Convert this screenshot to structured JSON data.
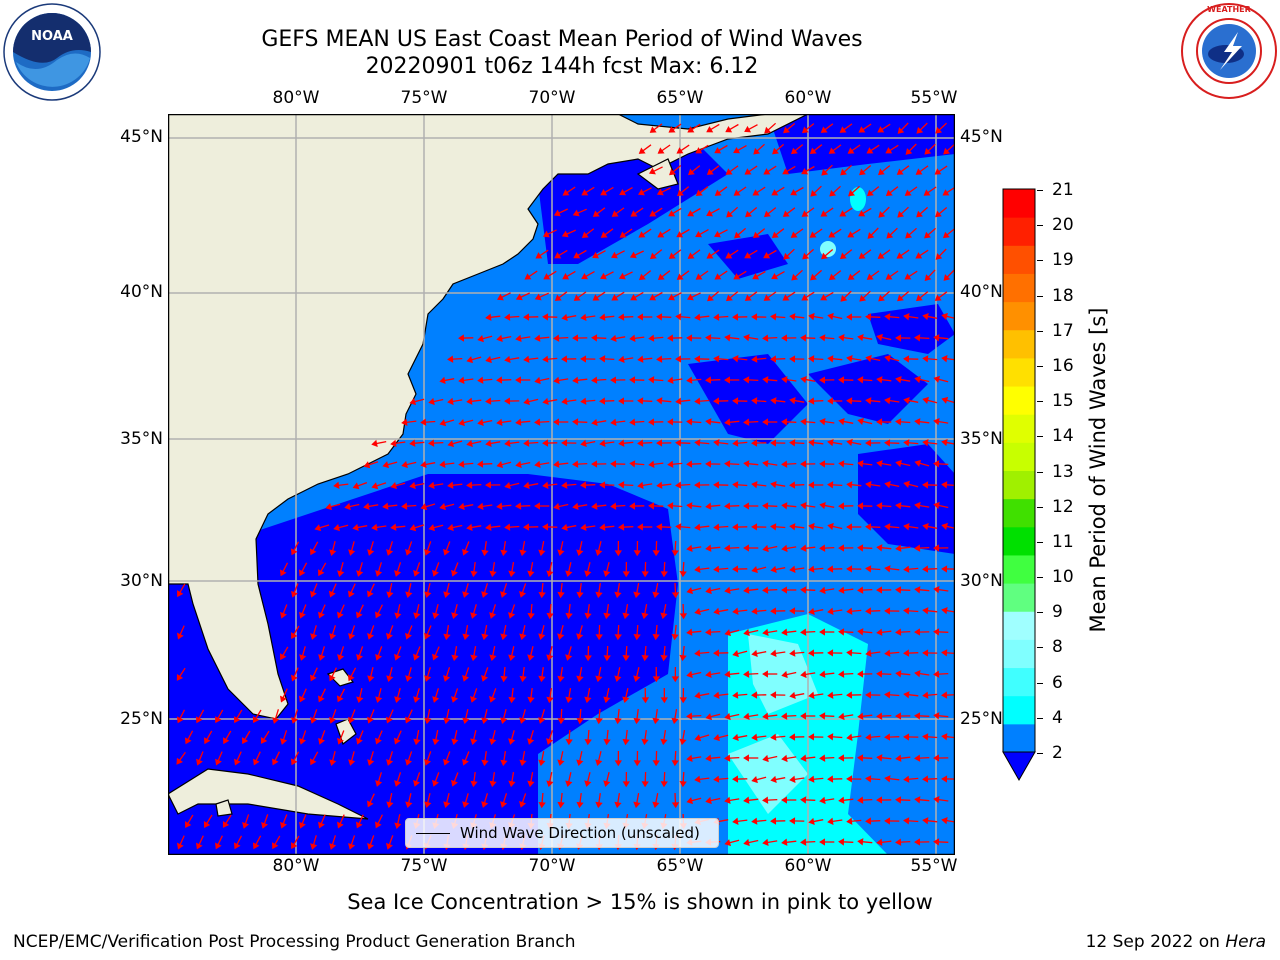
{
  "header": {
    "title_line1": "GEFS MEAN US East Coast Mean Period of Wind Waves",
    "title_line2": "20220901 t06z 144h fcst   Max: 6.12"
  },
  "logos": {
    "left": "NOAA",
    "right": "NATIONAL WEATHER SERVICE"
  },
  "map": {
    "lon_labels": [
      "80°W",
      "75°W",
      "70°W",
      "65°W",
      "60°W",
      "55°W"
    ],
    "lat_labels": [
      "45°N",
      "40°N",
      "35°N",
      "30°N",
      "25°N"
    ],
    "legend_label": "Wind Wave Direction (unscaled)",
    "colors": {
      "land": "#eeeedc",
      "deep_blue": "#0000ff",
      "mid_blue": "#0080ff",
      "cyan": "#00ffff",
      "pale_cyan": "#80ffff",
      "arrow": "#ff0000"
    }
  },
  "colorbar": {
    "title": "Mean Period of Wind Waves [s]",
    "ticks": [
      "21",
      "20",
      "19",
      "18",
      "17",
      "16",
      "15",
      "14",
      "13",
      "12",
      "11",
      "10",
      "9",
      "8",
      "6",
      "4",
      "2"
    ],
    "colors_bottom_to_top": [
      "#0080ff",
      "#00ffff",
      "#40ffff",
      "#80ffff",
      "#a0ffff",
      "#60ff80",
      "#40ff40",
      "#00e000",
      "#40e000",
      "#a0f000",
      "#c8ff00",
      "#e0ff00",
      "#ffff00",
      "#ffe000",
      "#ffc000",
      "#ff9000",
      "#ff7000",
      "#ff5000",
      "#ff2000",
      "#ff0000"
    ],
    "under_color": "#0000ff"
  },
  "note": "Sea Ice Concentration > 15% is shown in pink to yellow",
  "footer": {
    "left": "NCEP/EMC/Verification Post Processing Product Generation Branch",
    "right_date": "12 Sep 2022 on ",
    "right_machine": "Hera"
  }
}
